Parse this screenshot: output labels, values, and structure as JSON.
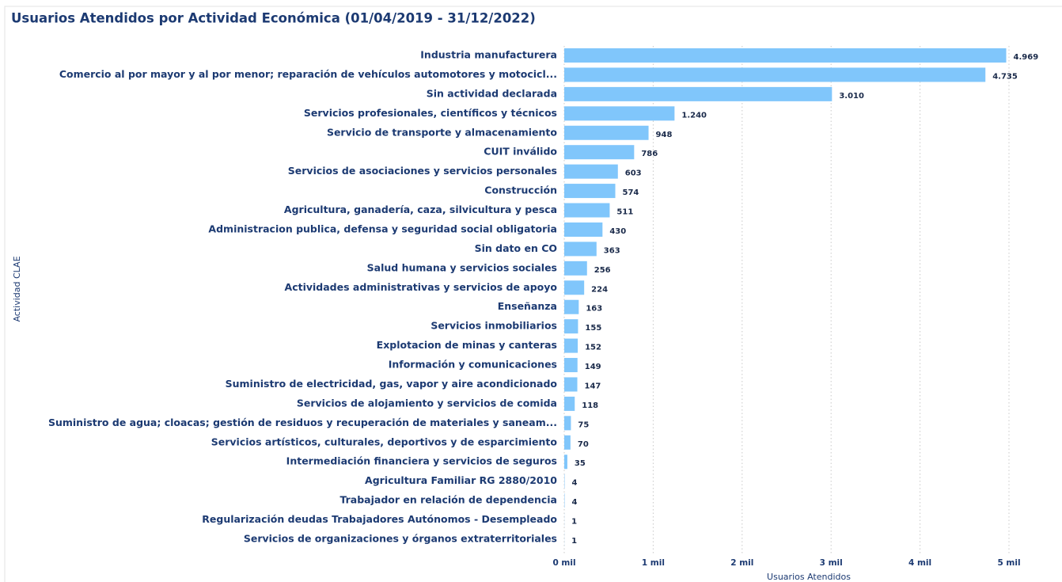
{
  "chart_data": {
    "type": "barh",
    "title": "Usuarios Atendidos por Actividad Económica (01/04/2019 - 31/12/2022)",
    "x_label": "Usuarios Atendidos",
    "y_label": "Actividad CLAE",
    "categories": [
      "Industria manufacturera",
      "Comercio al por mayor y al por menor; reparación de vehículos automotores y motocicl...",
      "Sin actividad declarada",
      "Servicios profesionales, científicos y técnicos",
      "Servicio de transporte y almacenamiento",
      "CUIT inválido",
      "Servicios de asociaciones y servicios personales",
      "Construcción",
      "Agricultura, ganadería, caza, silvicultura y pesca",
      "Administracion publica, defensa y seguridad social obligatoria",
      "Sin dato en CO",
      "Salud humana y servicios sociales",
      "Actividades administrativas y servicios de apoyo",
      "Enseñanza",
      "Servicios inmobiliarios",
      "Explotacion de minas y canteras",
      "Información y comunicaciones",
      "Suministro de electricidad, gas, vapor y aire acondicionado",
      "Servicios de alojamiento y servicios de comida",
      "Suministro de agua; cloacas; gestión de residuos y recuperación de materiales y saneam...",
      "Servicios artísticos, culturales, deportivos y de esparcimiento",
      "Intermediación financiera y servicios de seguros",
      "Agricultura Familiar RG 2880/2010",
      "Trabajador en relación de dependencia",
      "Regularización deudas Trabajadores Autónomos - Desempleado",
      "Servicios de organizaciones y órganos extraterritoriales"
    ],
    "values": [
      4969,
      4735,
      3010,
      1240,
      948,
      786,
      603,
      574,
      511,
      430,
      363,
      256,
      224,
      163,
      155,
      152,
      149,
      147,
      118,
      75,
      70,
      35,
      4,
      4,
      1,
      1
    ],
    "value_labels": [
      "4.969",
      "4.735",
      "3.010",
      "1.240",
      "948",
      "786",
      "603",
      "574",
      "511",
      "430",
      "363",
      "256",
      "224",
      "163",
      "155",
      "152",
      "149",
      "147",
      "118",
      "75",
      "70",
      "35",
      "4",
      "4",
      "1",
      "1"
    ],
    "color": "#80c6fb",
    "xlim": [
      0,
      5000
    ],
    "xticks": [
      {
        "value": 0,
        "label": "0 mil"
      },
      {
        "value": 1000,
        "label": "1 mil"
      },
      {
        "value": 2000,
        "label": "2 mil"
      },
      {
        "value": 3000,
        "label": "3 mil"
      },
      {
        "value": 4000,
        "label": "4 mil"
      },
      {
        "value": 5000,
        "label": "5 mil"
      }
    ],
    "grid": true
  }
}
